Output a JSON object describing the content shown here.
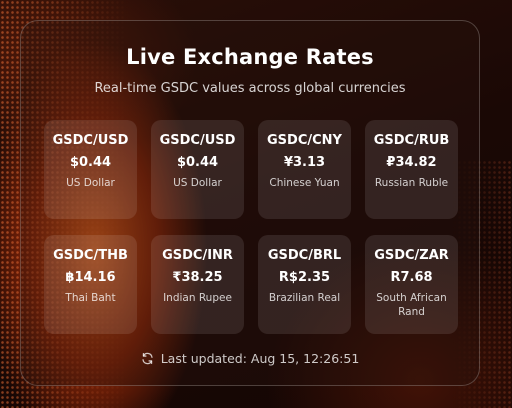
{
  "header": {
    "title": "Live Exchange Rates",
    "subtitle": "Real-time GSDC values across global currencies"
  },
  "rates": [
    {
      "pair": "GSDC/USD",
      "rate": "$0.44",
      "name": "US Dollar"
    },
    {
      "pair": "GSDC/USD",
      "rate": "$0.44",
      "name": "US Dollar"
    },
    {
      "pair": "GSDC/CNY",
      "rate": "¥3.13",
      "name": "Chinese Yuan"
    },
    {
      "pair": "GSDC/RUB",
      "rate": "₽34.82",
      "name": "Russian Ruble"
    },
    {
      "pair": "GSDC/THB",
      "rate": "฿14.16",
      "name": "Thai Baht"
    },
    {
      "pair": "GSDC/INR",
      "rate": "₹38.25",
      "name": "Indian Rupee"
    },
    {
      "pair": "GSDC/BRL",
      "rate": "R$2.35",
      "name": "Brazilian Real"
    },
    {
      "pair": "GSDC/ZAR",
      "rate": "R7.68",
      "name": "South African Rand"
    }
  ],
  "footer": {
    "icon": "refresh-icon",
    "text": "Last updated: Aug 15, 12:26:51"
  },
  "colors": {
    "accent": "#e8501a",
    "background": "#1a0805",
    "text": "#ffffff"
  }
}
